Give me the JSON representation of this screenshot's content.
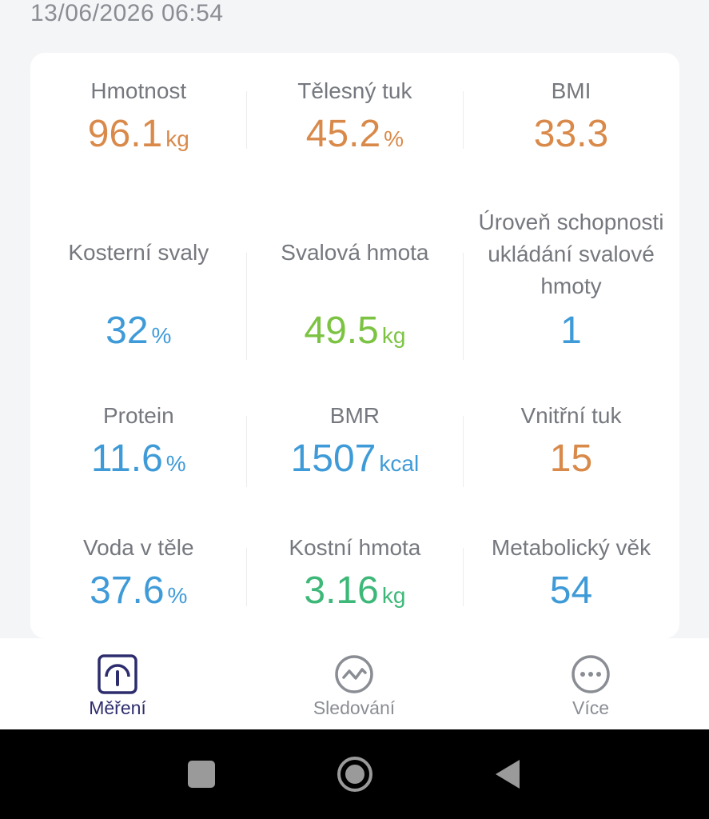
{
  "timestamp": "13/06/2026 06:54",
  "metrics": [
    {
      "label": "Hmotnost",
      "value": "96.1",
      "unit": "kg",
      "color": "#d98a4a"
    },
    {
      "label": "Tělesný tuk",
      "value": "45.2",
      "unit": "%",
      "color": "#d98a4a"
    },
    {
      "label": "BMI",
      "value": "33.3",
      "unit": "",
      "color": "#d98a4a"
    },
    {
      "label": "Kosterní svaly",
      "value": "32",
      "unit": "%",
      "color": "#3f9bd8"
    },
    {
      "label": "Svalová hmota",
      "value": "49.5",
      "unit": "kg",
      "color": "#7cc343"
    },
    {
      "label": "Úroveň schopnosti ukládání svalové hmoty",
      "value": "1",
      "unit": "",
      "color": "#3f9bd8"
    },
    {
      "label": "Protein",
      "value": "11.6",
      "unit": "%",
      "color": "#3f9bd8"
    },
    {
      "label": "BMR",
      "value": "1507",
      "unit": "kcal",
      "color": "#3f9bd8"
    },
    {
      "label": "Vnitřní tuk",
      "value": "15",
      "unit": "",
      "color": "#d98a4a"
    },
    {
      "label": "Voda v těle",
      "value": "37.6",
      "unit": "%",
      "color": "#3f9bd8"
    },
    {
      "label": "Kostní hmota",
      "value": "3.16",
      "unit": "kg",
      "color": "#3db878"
    },
    {
      "label": "Metabolický věk",
      "value": "54",
      "unit": "",
      "color": "#3f9bd8"
    }
  ],
  "nav": {
    "measure": {
      "label": "Měření",
      "icon": "scale-gauge-icon"
    },
    "tracking": {
      "label": "Sledování",
      "icon": "trend-line-icon"
    },
    "more": {
      "label": "Více",
      "icon": "more-dots-icon"
    }
  },
  "system_bar": {
    "recents": "square-icon",
    "home": "circle-icon",
    "back": "triangle-back-icon"
  }
}
